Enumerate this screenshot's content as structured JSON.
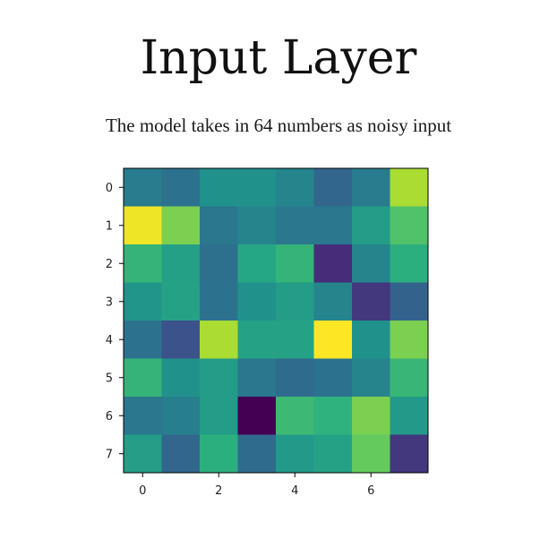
{
  "title": "Input Layer",
  "subtitle": "The model takes in 64 numbers as noisy input",
  "chart_data": {
    "type": "heatmap",
    "title": "",
    "xlabel": "",
    "ylabel": "",
    "colormap": "viridis",
    "rows": 8,
    "cols": 8,
    "x_ticks": [
      0,
      2,
      4,
      6
    ],
    "y_ticks": [
      0,
      1,
      2,
      3,
      4,
      5,
      6,
      7
    ],
    "values": [
      [
        0.42,
        0.38,
        0.5,
        0.5,
        0.45,
        0.33,
        0.42,
        0.88
      ],
      [
        0.98,
        0.8,
        0.4,
        0.45,
        0.4,
        0.4,
        0.55,
        0.72
      ],
      [
        0.66,
        0.57,
        0.37,
        0.6,
        0.66,
        0.15,
        0.45,
        0.64
      ],
      [
        0.52,
        0.58,
        0.38,
        0.5,
        0.55,
        0.45,
        0.18,
        0.32
      ],
      [
        0.38,
        0.25,
        0.88,
        0.58,
        0.58,
        1.0,
        0.5,
        0.8
      ],
      [
        0.66,
        0.5,
        0.55,
        0.4,
        0.35,
        0.38,
        0.45,
        0.67
      ],
      [
        0.4,
        0.43,
        0.55,
        0.0,
        0.68,
        0.65,
        0.8,
        0.54
      ],
      [
        0.56,
        0.33,
        0.64,
        0.35,
        0.54,
        0.58,
        0.76,
        0.18
      ]
    ]
  }
}
